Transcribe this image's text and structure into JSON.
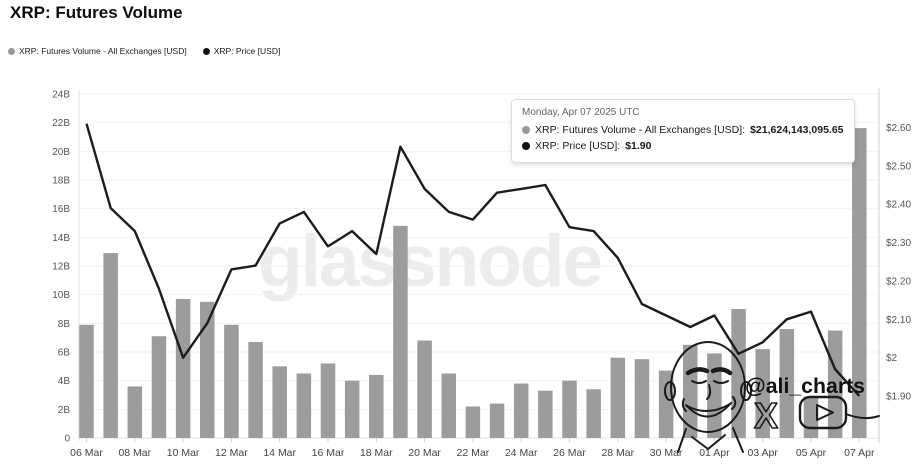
{
  "title": "XRP: Futures Volume",
  "watermark": "glassnode",
  "legend": [
    {
      "label": "XRP: Futures Volume - All Exchanges [USD]",
      "color": "#999999"
    },
    {
      "label": "XRP: Price [USD]",
      "color": "#111111"
    }
  ],
  "tooltip": {
    "date": "Monday, Apr 07 2025 UTC",
    "rows": [
      {
        "label": "XRP: Futures Volume - All Exchanges [USD]:",
        "value": "$21,624,143,095.65",
        "color": "#999999"
      },
      {
        "label": "XRP: Price [USD]:",
        "value": "$1.90",
        "color": "#111111"
      }
    ]
  },
  "annotation": {
    "handle": "@ali_charts",
    "x_glyph": "X",
    "icons": [
      "face-doodle",
      "x-logo-icon",
      "play-button-icon"
    ]
  },
  "chart_data": {
    "type": "bar+line",
    "title": "XRP: Futures Volume",
    "x": [
      "06 Mar",
      "07 Mar",
      "08 Mar",
      "09 Mar",
      "10 Mar",
      "11 Mar",
      "12 Mar",
      "13 Mar",
      "14 Mar",
      "15 Mar",
      "16 Mar",
      "17 Mar",
      "18 Mar",
      "19 Mar",
      "20 Mar",
      "21 Mar",
      "22 Mar",
      "23 Mar",
      "24 Mar",
      "25 Mar",
      "26 Mar",
      "27 Mar",
      "28 Mar",
      "29 Mar",
      "30 Mar",
      "31 Mar",
      "01 Apr",
      "02 Apr",
      "03 Apr",
      "04 Apr",
      "05 Apr",
      "06 Apr",
      "07 Apr"
    ],
    "x_tick_every": 2,
    "series": [
      {
        "name": "XRP: Futures Volume - All Exchanges [USD]",
        "type": "bar",
        "unit": "billions USD",
        "values": [
          7.9,
          12.9,
          3.6,
          7.1,
          9.7,
          9.5,
          7.9,
          6.7,
          5.0,
          4.5,
          5.2,
          4.0,
          4.4,
          14.8,
          6.8,
          4.5,
          2.2,
          2.4,
          3.8,
          3.3,
          4.0,
          3.4,
          5.6,
          5.5,
          4.7,
          6.5,
          5.9,
          9.0,
          6.2,
          7.6,
          2.9,
          7.5,
          21.62
        ]
      },
      {
        "name": "XRP: Price [USD]",
        "type": "line",
        "unit": "USD",
        "values": [
          2.61,
          2.39,
          2.33,
          2.18,
          2.0,
          2.09,
          2.23,
          2.24,
          2.35,
          2.38,
          2.29,
          2.33,
          2.27,
          2.55,
          2.44,
          2.38,
          2.36,
          2.43,
          2.44,
          2.45,
          2.34,
          2.33,
          2.26,
          2.14,
          2.11,
          2.08,
          2.11,
          2.01,
          2.04,
          2.1,
          2.12,
          1.97,
          1.9
        ]
      }
    ],
    "y_left": {
      "title": "volume",
      "ticks": [
        {
          "label": "0",
          "value": 0
        },
        {
          "label": "2B",
          "value": 2
        },
        {
          "label": "4B",
          "value": 4
        },
        {
          "label": "6B",
          "value": 6
        },
        {
          "label": "8B",
          "value": 8
        },
        {
          "label": "10B",
          "value": 10
        },
        {
          "label": "12B",
          "value": 12
        },
        {
          "label": "14B",
          "value": 14
        },
        {
          "label": "16B",
          "value": 16
        },
        {
          "label": "18B",
          "value": 18
        },
        {
          "label": "20B",
          "value": 20
        },
        {
          "label": "22B",
          "value": 22
        },
        {
          "label": "24B",
          "value": 24
        }
      ],
      "range_billions": [
        0,
        24
      ]
    },
    "y_right": {
      "title": "price",
      "ticks": [
        {
          "label": "$1.90",
          "value": 1.9
        },
        {
          "label": "$2",
          "value": 2.0
        },
        {
          "label": "$2.10",
          "value": 2.1
        },
        {
          "label": "$2.20",
          "value": 2.2
        },
        {
          "label": "$2.30",
          "value": 2.3
        },
        {
          "label": "$2.40",
          "value": 2.4
        },
        {
          "label": "$2.50",
          "value": 2.5
        },
        {
          "label": "$2.60",
          "value": 2.6
        }
      ],
      "range_usd": [
        1.9,
        2.6
      ]
    },
    "grid": true,
    "legend_position": "top-left",
    "colors": {
      "bar": "#9c9c9c",
      "line": "#1c1c1c",
      "grid": "#f2f2f2",
      "axis": "#d9d9d9"
    }
  }
}
